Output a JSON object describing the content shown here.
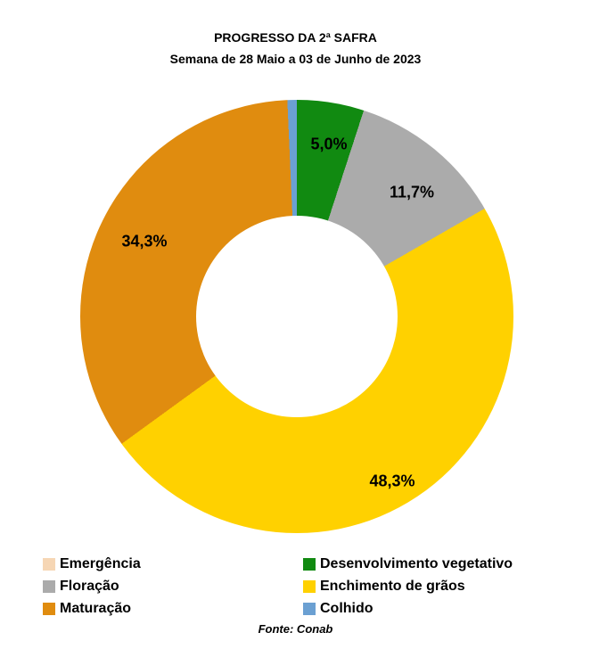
{
  "header": {
    "title": "PROGRESSO DA 2ª SAFRA",
    "subtitle": "Semana de 28 Maio a 03 de Junho de 2023"
  },
  "chart_data": {
    "type": "pie",
    "subtype": "donut",
    "title": "PROGRESSO DA 2ª SAFRA",
    "subtitle": "Semana de 28 Maio a 03 de Junho de 2023",
    "unit": "%",
    "categories": [
      "Emergência",
      "Desenvolvimento vegetativo",
      "Floração",
      "Enchimento de grãos",
      "Maturação",
      "Colhido"
    ],
    "values": [
      0.0,
      5.0,
      11.7,
      48.3,
      34.3,
      0.7
    ],
    "colors": [
      "#F6D6B4",
      "#118A11",
      "#ABABAB",
      "#FFD100",
      "#E08C0F",
      "#6BA0D2"
    ],
    "slice_labels": [
      {
        "category": "Desenvolvimento vegetativo",
        "text": "5,0%"
      },
      {
        "category": "Floração",
        "text": "11,7%"
      },
      {
        "category": "Maturação",
        "text": "34,3%"
      },
      {
        "category": "Enchimento de grãos",
        "text": "48,3%"
      }
    ],
    "start_angle_deg": 0,
    "direction": "clockwise",
    "donut_hole_ratio": 0.465,
    "legend_position": "bottom",
    "legend_columns": {
      "left": [
        0,
        2,
        4
      ],
      "right": [
        1,
        3,
        5
      ]
    }
  },
  "footer": {
    "source": "Fonte: Conab"
  }
}
